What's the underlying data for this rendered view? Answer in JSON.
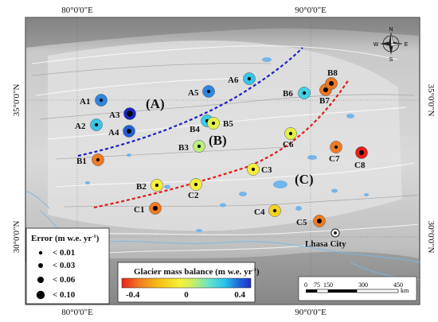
{
  "axes": {
    "top_ticks": [
      "80°0'0\"E",
      "90°0'0\"E"
    ],
    "left_ticks": [
      "35°0'0\"N",
      "30°0'0\"N"
    ],
    "bottom_ticks": [
      "80°0'0\"E",
      "90°0'0\"E"
    ],
    "right_ticks": [
      "35°0'0\"N",
      "30°0'0\"N"
    ]
  },
  "regions": [
    "(A)",
    "(B)",
    "(C)"
  ],
  "city": "Lhasa City",
  "compass": {
    "n": "N",
    "s": "S",
    "e": "E",
    "w": "W"
  },
  "error_legend": {
    "title_main": "Error (m w.e. yr",
    "title_sup": "-1",
    "title_end": ")",
    "items": [
      "< 0.01",
      "< 0.03",
      "< 0.06",
      "< 0.10"
    ]
  },
  "balance_legend": {
    "title_main": "Glacier mass balance (m w.e. yr",
    "title_sup": "-1",
    "title_end": ")",
    "min_label": "-0.4",
    "mid_label": "0",
    "max_label": "0.4",
    "colors": [
      "#e8231f",
      "#f07a22",
      "#f5c518",
      "#f7f13a",
      "#c9ee6a",
      "#62e4c8",
      "#28c2ee",
      "#1f6bd9",
      "#1f2fc8"
    ]
  },
  "scale_bar": {
    "ticks": [
      "0",
      "75",
      "150",
      "300",
      "450"
    ],
    "unit": "km"
  },
  "sites": [
    {
      "id": "A1",
      "balance": 0.22,
      "error": 0.03,
      "color": "#2f86e0"
    },
    {
      "id": "A2",
      "balance": 0.1,
      "error": 0.03,
      "color": "#38c5e8"
    },
    {
      "id": "A3",
      "balance": 0.4,
      "error": 0.1,
      "color": "#1a26c4"
    },
    {
      "id": "A4",
      "balance": 0.3,
      "error": 0.06,
      "color": "#2462d6"
    },
    {
      "id": "A5",
      "balance": 0.22,
      "error": 0.03,
      "color": "#2f86e0"
    },
    {
      "id": "A6",
      "balance": 0.1,
      "error": 0.03,
      "color": "#38c5e8"
    },
    {
      "id": "B1",
      "balance": -0.2,
      "error": 0.03,
      "color": "#f07a22"
    },
    {
      "id": "B2",
      "balance": -0.02,
      "error": 0.03,
      "color": "#f5ef3c"
    },
    {
      "id": "B3",
      "balance": 0.02,
      "error": 0.03,
      "color": "#bdf07c"
    },
    {
      "id": "B4",
      "balance": 0.1,
      "error": 0.03,
      "color": "#3ccbe6"
    },
    {
      "id": "B5",
      "balance": 0.0,
      "error": 0.03,
      "color": "#e4f247"
    },
    {
      "id": "B6",
      "balance": 0.1,
      "error": 0.03,
      "color": "#43d0e6"
    },
    {
      "id": "B7",
      "balance": -0.2,
      "error": 0.06,
      "color": "#ed7722"
    },
    {
      "id": "B8",
      "balance": -0.2,
      "error": 0.06,
      "color": "#ed7722"
    },
    {
      "id": "C1",
      "balance": -0.2,
      "error": 0.06,
      "color": "#f07a22"
    },
    {
      "id": "C2",
      "balance": -0.02,
      "error": 0.03,
      "color": "#f5ef3c"
    },
    {
      "id": "C3",
      "balance": -0.02,
      "error": 0.03,
      "color": "#f5ef3c"
    },
    {
      "id": "C4",
      "balance": -0.05,
      "error": 0.03,
      "color": "#f5d320"
    },
    {
      "id": "C5",
      "balance": -0.2,
      "error": 0.06,
      "color": "#ee7b22"
    },
    {
      "id": "C6",
      "balance": 0.0,
      "error": 0.03,
      "color": "#e2f048"
    },
    {
      "id": "C7",
      "balance": -0.2,
      "error": 0.03,
      "color": "#f07a22"
    },
    {
      "id": "C8",
      "balance": -0.4,
      "error": 0.06,
      "color": "#e61e1e"
    }
  ]
}
